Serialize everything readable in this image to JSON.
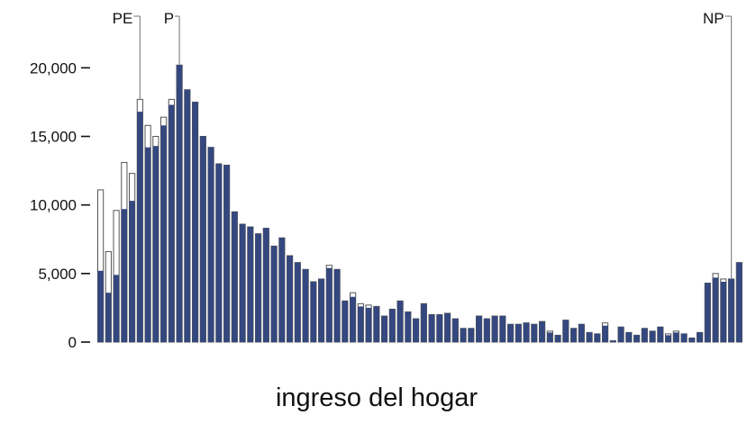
{
  "chart_data": {
    "type": "bar",
    "xlabel": "ingreso del hogar",
    "ylabel": "",
    "ylim": [
      0,
      22000
    ],
    "yticks": [
      0,
      5000,
      10000,
      15000,
      20000
    ],
    "ytick_labels": [
      "0",
      "5,000",
      "10,000",
      "15,000",
      "20,000"
    ],
    "grid": false,
    "legend": "none",
    "colors": {
      "filled": "#34477f",
      "outline": "#555555",
      "axis": "#111111"
    },
    "series": [
      {
        "values": [
          5200,
          3600,
          4900,
          9700,
          10300,
          16800,
          14200,
          14300,
          15800,
          17300,
          20200,
          18400,
          17500,
          15000,
          14200,
          13000,
          12900,
          9500,
          8600,
          8400,
          7900,
          8300,
          7000,
          7600,
          6300,
          5800,
          5300,
          4400,
          4600,
          5400,
          5300,
          3000,
          3300,
          2600,
          2500,
          2600,
          1900,
          2400,
          3000,
          2200,
          1700,
          2800,
          2000,
          2000,
          2100,
          1700,
          1000,
          1000,
          1900,
          1700,
          1900,
          1900,
          1300,
          1300,
          1400,
          1300,
          1500,
          700,
          500,
          1600,
          1000,
          1300,
          700,
          600,
          1200,
          100,
          1100,
          700,
          500,
          1000,
          800,
          1100,
          500,
          700,
          600,
          300,
          700,
          4300,
          4700,
          4400,
          4600,
          5800
        ],
        "outline_values": [
          11100,
          6600,
          9600,
          13100,
          12300,
          17700,
          15800,
          15000,
          16400,
          17700,
          20200,
          18400,
          17500,
          15000,
          14200,
          13000,
          12900,
          9500,
          8600,
          8400,
          7900,
          8300,
          7000,
          7600,
          6300,
          5800,
          5300,
          4400,
          4600,
          5600,
          5300,
          3000,
          3600,
          2800,
          2700,
          2600,
          1900,
          2400,
          3000,
          2200,
          1700,
          2800,
          2000,
          2000,
          2100,
          1700,
          1000,
          1000,
          1900,
          1700,
          1900,
          1900,
          1300,
          1300,
          1400,
          1300,
          1500,
          800,
          500,
          1600,
          1000,
          1300,
          700,
          600,
          1400,
          100,
          1100,
          700,
          500,
          1000,
          800,
          1100,
          600,
          800,
          600,
          300,
          700,
          4300,
          5000,
          4600,
          4600,
          5800
        ]
      }
    ],
    "markers": [
      {
        "label": "PE",
        "index": 5
      },
      {
        "label": "P",
        "index": 10
      },
      {
        "label": "NP",
        "index": 80
      }
    ]
  }
}
